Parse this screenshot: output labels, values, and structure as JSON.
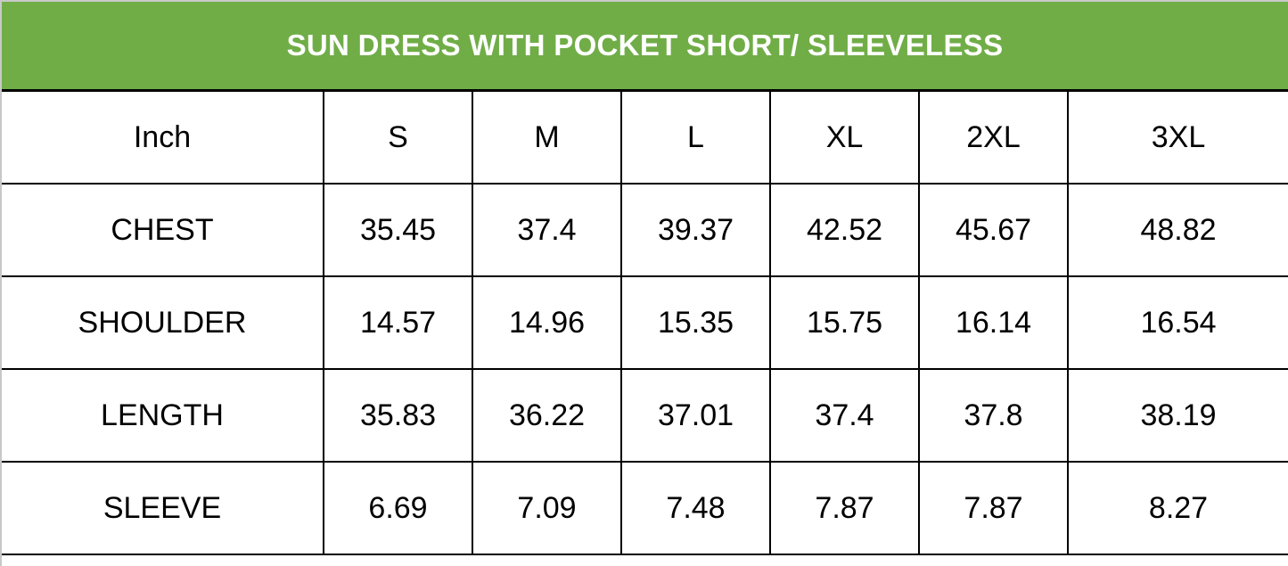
{
  "title": "SUN DRESS WITH POCKET SHORT/ SLEEVELESS",
  "colors": {
    "header_bg": "#70ad47",
    "header_text": "#ffffff"
  },
  "table": {
    "unit_label": "Inch",
    "sizes": [
      "S",
      "M",
      "L",
      "XL",
      "2XL",
      "3XL"
    ],
    "rows": [
      {
        "label": "CHEST",
        "values": [
          "35.45",
          "37.4",
          "39.37",
          "42.52",
          "45.67",
          "48.82"
        ]
      },
      {
        "label": "SHOULDER",
        "values": [
          "14.57",
          "14.96",
          "15.35",
          "15.75",
          "16.14",
          "16.54"
        ]
      },
      {
        "label": "LENGTH",
        "values": [
          "35.83",
          "36.22",
          "37.01",
          "37.4",
          "37.8",
          "38.19"
        ]
      },
      {
        "label": "SLEEVE",
        "values": [
          "6.69",
          "7.09",
          "7.48",
          "7.87",
          "7.87",
          "8.27"
        ]
      }
    ]
  }
}
